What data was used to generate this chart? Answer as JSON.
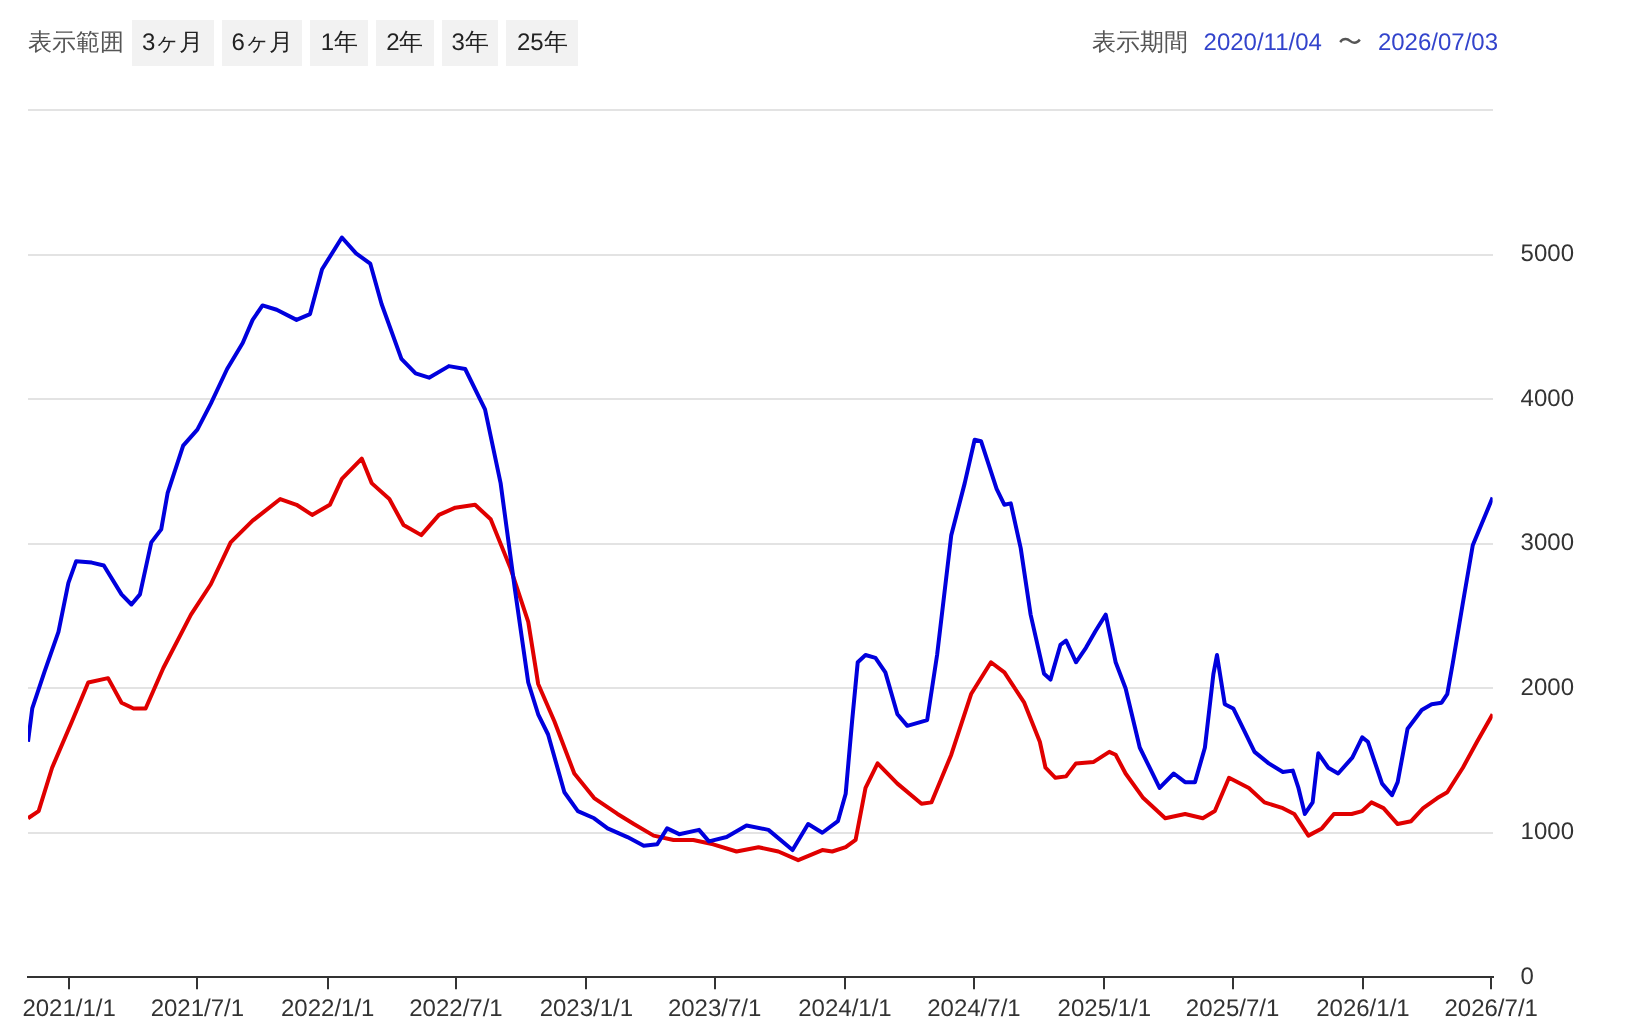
{
  "chart_data": {
    "type": "line",
    "annotations": [
      "表示範囲",
      "3ヶ月",
      "6ヶ月",
      "1年",
      "2年",
      "3年",
      "25年",
      "表示期間",
      "2020/11/04",
      "〜",
      "2026/07/03"
    ],
    "xlim": [
      "2020-11-04",
      "2026-07-03"
    ],
    "xticks": [
      {
        "value": "2021-01-01",
        "label": "2021/1/1"
      },
      {
        "value": "2021-07-01",
        "label": "2021/7/1"
      },
      {
        "value": "2022-01-01",
        "label": "2022/1/1"
      },
      {
        "value": "2022-07-01",
        "label": "2022/7/1"
      },
      {
        "value": "2023-01-01",
        "label": "2023/1/1"
      },
      {
        "value": "2023-07-01",
        "label": "2023/7/1"
      },
      {
        "value": "2024-01-01",
        "label": "2024/1/1"
      },
      {
        "value": "2024-07-01",
        "label": "2024/7/1"
      },
      {
        "value": "2025-01-01",
        "label": "2025/1/1"
      },
      {
        "value": "2025-07-01",
        "label": "2025/7/1"
      },
      {
        "value": "2026-01-01",
        "label": "2026/1/1"
      },
      {
        "value": "2026-07-01",
        "label": "2026/7/1"
      }
    ],
    "ylim": [
      0,
      6000
    ],
    "yticks": [
      0,
      1000,
      2000,
      3000,
      4000,
      5000,
      {
        "value": 6000,
        "label": null
      }
    ],
    "grid": "y",
    "legend": false,
    "marker": "none",
    "line_style": "solid",
    "series": [
      {
        "color": "#0000dd",
        "x": [
          "2020-11-04",
          "2020-11-10",
          "2020-11-27",
          "2020-12-17",
          "2020-12-31",
          "2021-01-11",
          "2021-02-02",
          "2021-02-19",
          "2021-03-16",
          "2021-03-30",
          "2021-04-11",
          "2021-04-27",
          "2021-05-11",
          "2021-05-20",
          "2021-06-11",
          "2021-07-01",
          "2021-07-20",
          "2021-08-12",
          "2021-09-03",
          "2021-09-17",
          "2021-10-01",
          "2021-10-21",
          "2021-11-18",
          "2021-12-07",
          "2021-12-24",
          "2022-01-21",
          "2022-02-10",
          "2022-03-02",
          "2022-03-18",
          "2022-04-15",
          "2022-05-05",
          "2022-05-24",
          "2022-06-21",
          "2022-07-14",
          "2022-08-11",
          "2022-09-02",
          "2022-09-22",
          "2022-10-11",
          "2022-10-25",
          "2022-11-08",
          "2022-12-01",
          "2022-12-20",
          "2023-01-12",
          "2023-01-31",
          "2023-02-28",
          "2023-03-23",
          "2023-04-11",
          "2023-04-25",
          "2023-05-12",
          "2023-06-09",
          "2023-06-23",
          "2023-07-18",
          "2023-08-15",
          "2023-09-15",
          "2023-10-19",
          "2023-11-10",
          "2023-11-30",
          "2023-12-22",
          "2024-01-02",
          "2024-01-11",
          "2024-01-19",
          "2024-01-30",
          "2024-02-13",
          "2024-02-27",
          "2024-03-15",
          "2024-03-29",
          "2024-04-26",
          "2024-05-10",
          "2024-05-30",
          "2024-06-18",
          "2024-07-02",
          "2024-07-11",
          "2024-08-02",
          "2024-08-13",
          "2024-08-22",
          "2024-09-05",
          "2024-09-19",
          "2024-10-08",
          "2024-10-17",
          "2024-10-31",
          "2024-11-08",
          "2024-11-22",
          "2024-12-06",
          "2024-12-20",
          "2025-01-03",
          "2025-01-17",
          "2025-01-31",
          "2025-02-20",
          "2025-03-06",
          "2025-03-20",
          "2025-04-09",
          "2025-04-25",
          "2025-05-09",
          "2025-05-23",
          "2025-06-04",
          "2025-06-09",
          "2025-06-20",
          "2025-07-02",
          "2025-07-16",
          "2025-08-01",
          "2025-08-21",
          "2025-09-10",
          "2025-09-24",
          "2025-10-02",
          "2025-10-11",
          "2025-10-22",
          "2025-10-30",
          "2025-11-13",
          "2025-11-27",
          "2025-12-17",
          "2025-12-31",
          "2026-01-08",
          "2026-01-28",
          "2026-02-11",
          "2026-02-19",
          "2026-03-05",
          "2026-03-25",
          "2026-04-08",
          "2026-04-22",
          "2026-04-30",
          "2026-05-08",
          "2026-05-22",
          "2026-06-05",
          "2026-07-03"
        ],
        "values": [
          1630,
          1860,
          2110,
          2390,
          2730,
          2880,
          2870,
          2850,
          2650,
          2580,
          2650,
          3010,
          3100,
          3350,
          3680,
          3790,
          3970,
          4210,
          4390,
          4550,
          4650,
          4620,
          4550,
          4590,
          4900,
          5120,
          5010,
          4940,
          4660,
          4280,
          4180,
          4150,
          4230,
          4210,
          3930,
          3420,
          2690,
          2040,
          1820,
          1680,
          1280,
          1150,
          1100,
          1030,
          970,
          910,
          920,
          1030,
          990,
          1020,
          940,
          970,
          1050,
          1020,
          880,
          1060,
          1000,
          1080,
          1270,
          1770,
          2180,
          2230,
          2210,
          2110,
          1820,
          1740,
          1780,
          2230,
          3060,
          3420,
          3720,
          3710,
          3380,
          3270,
          3280,
          2970,
          2510,
          2100,
          2060,
          2300,
          2330,
          2180,
          2280,
          2400,
          2510,
          2180,
          2000,
          1590,
          1450,
          1310,
          1410,
          1350,
          1350,
          1590,
          2100,
          2230,
          1890,
          1860,
          1720,
          1560,
          1480,
          1420,
          1430,
          1310,
          1130,
          1210,
          1550,
          1450,
          1410,
          1520,
          1660,
          1630,
          1340,
          1260,
          1350,
          1720,
          1850,
          1890,
          1900,
          1960,
          2180,
          2590,
          2990,
          3320
        ]
      },
      {
        "color": "#e00000",
        "x": [
          "2020-11-04",
          "2020-11-19",
          "2020-12-08",
          "2021-01-05",
          "2021-01-28",
          "2021-02-25",
          "2021-03-16",
          "2021-04-02",
          "2021-04-19",
          "2021-05-14",
          "2021-06-22",
          "2021-07-20",
          "2021-08-17",
          "2021-09-17",
          "2021-10-26",
          "2021-11-18",
          "2021-12-10",
          "2022-01-04",
          "2022-01-21",
          "2022-02-18",
          "2022-03-04",
          "2022-03-29",
          "2022-04-18",
          "2022-05-13",
          "2022-06-07",
          "2022-06-30",
          "2022-07-28",
          "2022-08-19",
          "2022-09-16",
          "2022-10-11",
          "2022-10-25",
          "2022-11-17",
          "2022-12-15",
          "2023-01-12",
          "2023-02-14",
          "2023-03-09",
          "2023-04-06",
          "2023-05-04",
          "2023-06-01",
          "2023-06-29",
          "2023-08-01",
          "2023-09-01",
          "2023-09-29",
          "2023-10-27",
          "2023-11-30",
          "2023-12-14",
          "2024-01-02",
          "2024-01-16",
          "2024-01-30",
          "2024-02-16",
          "2024-03-15",
          "2024-04-18",
          "2024-05-02",
          "2024-05-30",
          "2024-06-27",
          "2024-07-25",
          "2024-08-13",
          "2024-09-10",
          "2024-10-02",
          "2024-10-10",
          "2024-10-24",
          "2024-11-08",
          "2024-11-22",
          "2024-12-17",
          "2025-01-08",
          "2025-01-17",
          "2025-01-31",
          "2025-02-25",
          "2025-03-28",
          "2025-04-25",
          "2025-05-20",
          "2025-06-06",
          "2025-06-26",
          "2025-07-24",
          "2025-08-15",
          "2025-09-10",
          "2025-09-26",
          "2025-10-16",
          "2025-11-04",
          "2025-11-21",
          "2025-12-16",
          "2025-12-31",
          "2026-01-13",
          "2026-01-30",
          "2026-02-19",
          "2026-03-10",
          "2026-03-27",
          "2026-04-16",
          "2026-04-30",
          "2026-05-22",
          "2026-06-11",
          "2026-07-03"
        ],
        "values": [
          1100,
          1150,
          1450,
          1770,
          2040,
          2070,
          1900,
          1860,
          1860,
          2140,
          2510,
          2720,
          3010,
          3160,
          3310,
          3270,
          3200,
          3270,
          3450,
          3590,
          3420,
          3310,
          3130,
          3060,
          3200,
          3250,
          3270,
          3170,
          2830,
          2460,
          2030,
          1770,
          1410,
          1240,
          1130,
          1060,
          980,
          950,
          950,
          920,
          870,
          900,
          870,
          810,
          880,
          870,
          900,
          950,
          1310,
          1480,
          1340,
          1200,
          1210,
          1540,
          1960,
          2180,
          2110,
          1900,
          1630,
          1450,
          1380,
          1390,
          1480,
          1490,
          1560,
          1540,
          1410,
          1240,
          1100,
          1130,
          1100,
          1150,
          1380,
          1310,
          1210,
          1170,
          1130,
          980,
          1030,
          1130,
          1130,
          1150,
          1210,
          1170,
          1060,
          1080,
          1170,
          1240,
          1280,
          1450,
          1630,
          1820
        ]
      }
    ]
  }
}
